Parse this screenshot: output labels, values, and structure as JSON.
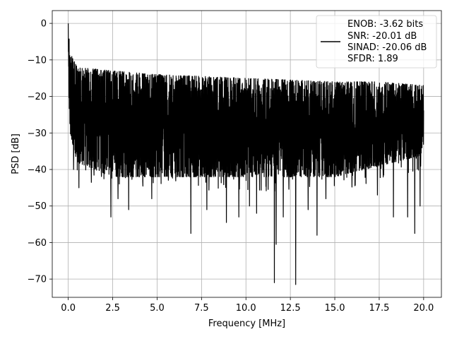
{
  "chart_data": {
    "type": "line",
    "xlabel": "Frequency [MHz]",
    "ylabel": "PSD [dB]",
    "xlim": [
      -0.9,
      21.0
    ],
    "ylim": [
      -75,
      3.5
    ],
    "xticks": [
      0.0,
      2.5,
      5.0,
      7.5,
      10.0,
      12.5,
      15.0,
      17.5,
      20.0
    ],
    "xtick_labels": [
      "0.0",
      "2.5",
      "5.0",
      "7.5",
      "10.0",
      "12.5",
      "15.0",
      "17.5",
      "20.0"
    ],
    "yticks": [
      0,
      -10,
      -20,
      -30,
      -40,
      -50,
      -60,
      -70
    ],
    "ytick_labels": [
      "0",
      "−10",
      "−20",
      "−30",
      "−40",
      "−50",
      "−60",
      "−70"
    ],
    "grid": true,
    "legend_position": "top-right",
    "series": [
      {
        "color": "#000000",
        "envelope_upper": [
          [
            0.0,
            0.0
          ],
          [
            0.1,
            -8
          ],
          [
            0.5,
            -12
          ],
          [
            2.5,
            -13
          ],
          [
            5.0,
            -14
          ],
          [
            10.0,
            -15
          ],
          [
            15.0,
            -16
          ],
          [
            17.5,
            -16
          ],
          [
            20.0,
            -17
          ]
        ],
        "envelope_lower": [
          [
            0.0,
            -15
          ],
          [
            0.1,
            -30
          ],
          [
            0.5,
            -38
          ],
          [
            2.5,
            -42
          ],
          [
            5.0,
            -42
          ],
          [
            10.0,
            -42
          ],
          [
            15.0,
            -42
          ],
          [
            20.0,
            -36
          ]
        ],
        "deep_notches": [
          [
            0.3,
            -40
          ],
          [
            0.6,
            -45
          ],
          [
            2.4,
            -53
          ],
          [
            2.8,
            -48
          ],
          [
            3.4,
            -51
          ],
          [
            4.7,
            -48
          ],
          [
            6.9,
            -57.5
          ],
          [
            7.8,
            -51
          ],
          [
            8.9,
            -54.5
          ],
          [
            9.6,
            -53
          ],
          [
            10.2,
            -50
          ],
          [
            10.6,
            -52
          ],
          [
            11.6,
            -71
          ],
          [
            11.7,
            -60.5
          ],
          [
            12.1,
            -53
          ],
          [
            12.8,
            -71.5
          ],
          [
            13.5,
            -51
          ],
          [
            14.0,
            -58
          ],
          [
            14.5,
            -48
          ],
          [
            17.4,
            -47
          ],
          [
            18.3,
            -53
          ],
          [
            19.1,
            -53
          ],
          [
            19.5,
            -57.5
          ],
          [
            19.8,
            -50
          ]
        ]
      }
    ],
    "legend": {
      "lines": [
        "ENOB: -3.62 bits",
        "SNR: -20.01 dB",
        "SINAD: -20.06 dB",
        "SFDR: 1.89"
      ]
    }
  }
}
